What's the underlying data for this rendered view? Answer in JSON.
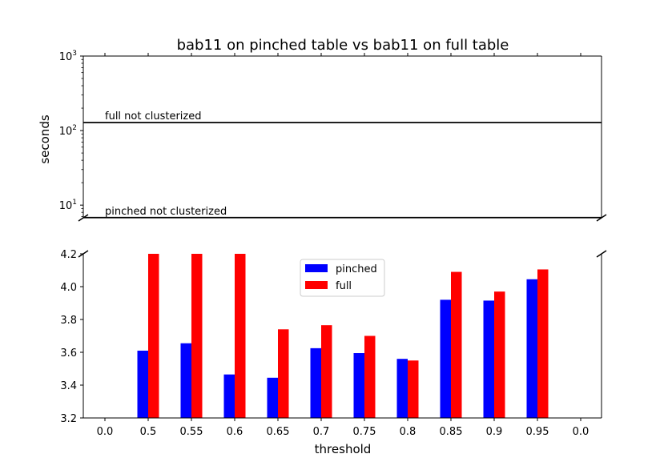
{
  "chart_data": [
    {
      "type": "line",
      "title": "bab11 on pinched table vs bab11 on full table",
      "ylabel": "seconds",
      "yscale": "log",
      "ylim_log_exp": [
        0.83,
        3
      ],
      "ytick_exponents": [
        1,
        2,
        3
      ],
      "ytick_base": "10",
      "hlines": [
        {
          "name": "full not clusterized",
          "value": 128
        },
        {
          "name": "pinched not clusterized",
          "value": 6.8
        }
      ]
    },
    {
      "type": "bar",
      "xlabel": "threshold",
      "categories": [
        "0.0",
        "0.5",
        "0.55",
        "0.6",
        "0.65",
        "0.7",
        "0.75",
        "0.8",
        "0.85",
        "0.9",
        "0.95",
        "0.0"
      ],
      "ylim": [
        3.2,
        4.2
      ],
      "yticks": [
        "3.2",
        "3.4",
        "3.6",
        "3.8",
        "4.0",
        "4.2"
      ],
      "legend_position": "top-center",
      "series": [
        {
          "name": "pinched",
          "color": "#0000ff",
          "values": [
            null,
            3.61,
            3.655,
            3.465,
            3.445,
            3.625,
            3.595,
            3.56,
            3.92,
            3.915,
            4.045,
            null
          ]
        },
        {
          "name": "full",
          "color": "#ff0000",
          "values": [
            null,
            4.2,
            4.2,
            4.2,
            3.74,
            3.765,
            3.7,
            3.55,
            4.09,
            3.97,
            4.105,
            null
          ]
        }
      ]
    }
  ]
}
